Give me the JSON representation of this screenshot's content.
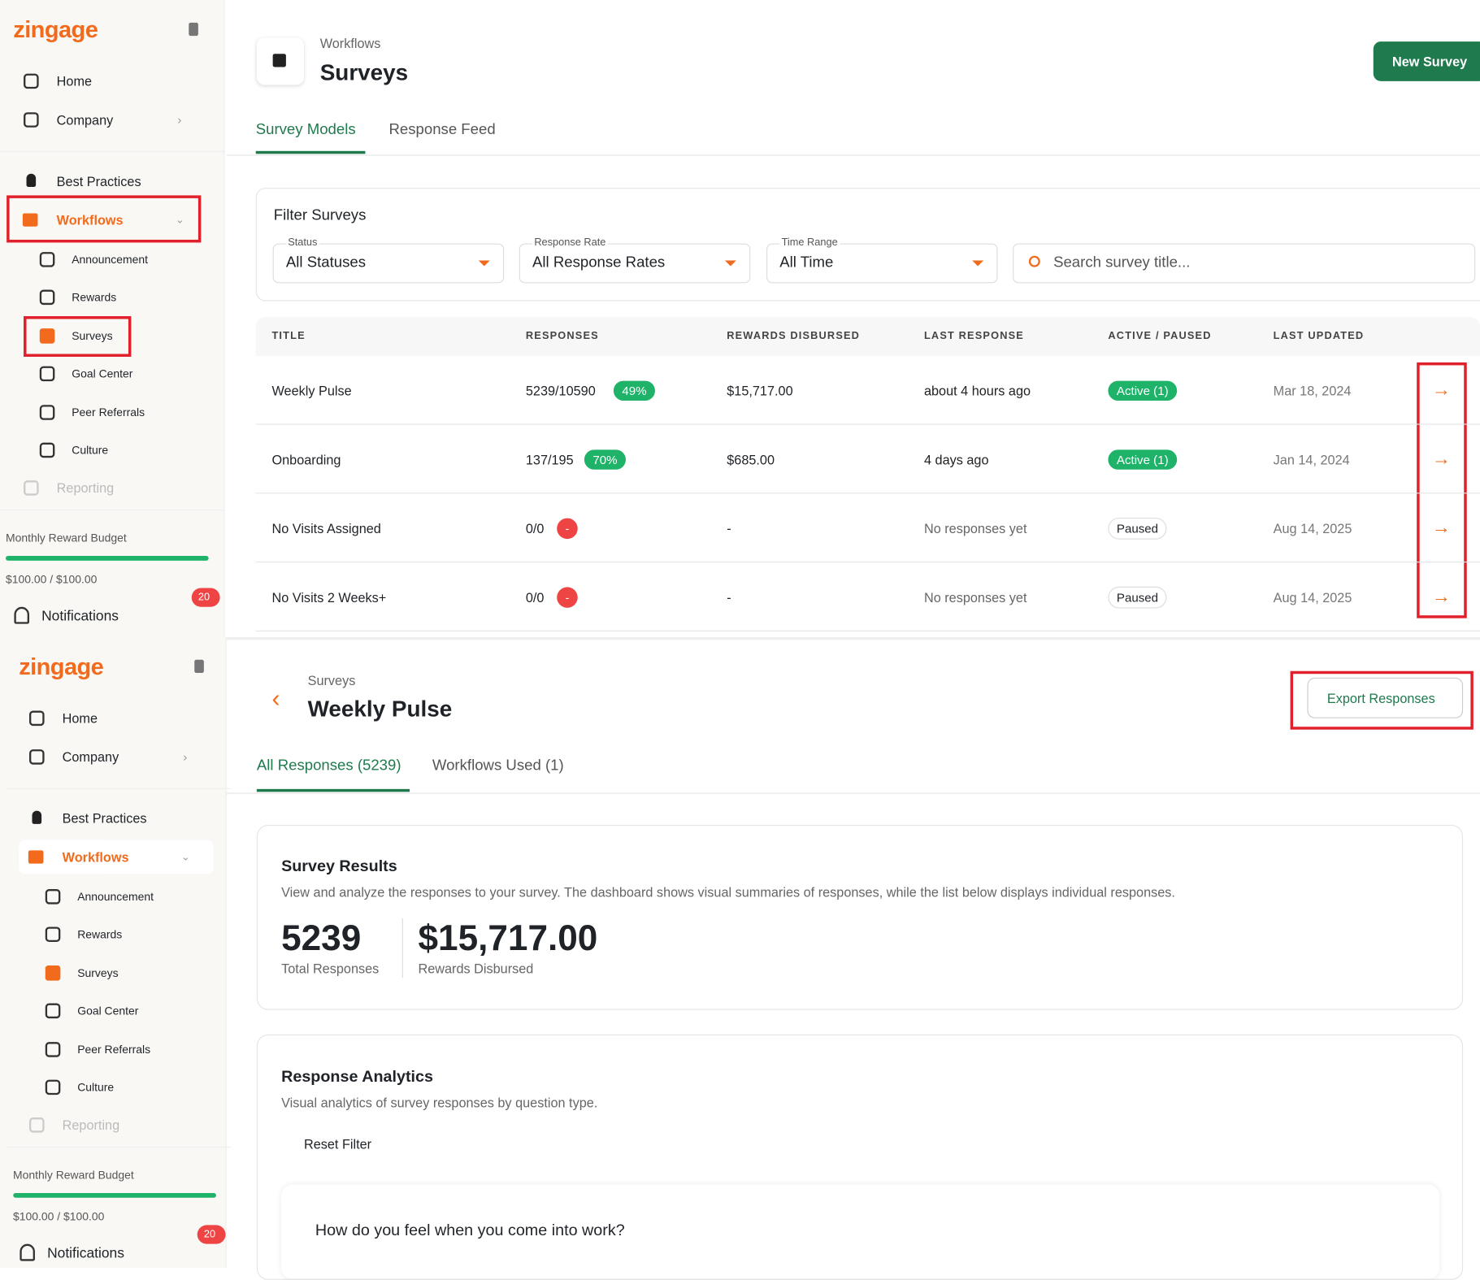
{
  "top": {
    "sidebar": {
      "logo": "zingage",
      "main": [
        "Home",
        "Company"
      ],
      "best": "Best Practices",
      "workflows": "Workflows",
      "sub": [
        "Announcement",
        "Rewards",
        "Surveys",
        "Goal Center",
        "Peer Referrals",
        "Culture"
      ],
      "reporting": "Reporting",
      "budget_label": "Monthly Reward Budget",
      "budget_value": "$100.00 / $100.00",
      "notification_count": 20,
      "notifications": "Notifications"
    },
    "header": {
      "breadcrumb": "Workflows",
      "title": "Surveys",
      "button": "New Survey"
    },
    "tabs": [
      "Survey Models",
      "Response Feed"
    ],
    "filter": {
      "title": "Filter Surveys",
      "fields": [
        {
          "label": "Status",
          "value": "All Statuses"
        },
        {
          "label": "Response Rate",
          "value": "All Response Rates"
        },
        {
          "label": "Time Range",
          "value": "All Time"
        }
      ],
      "search": "Search survey title..."
    },
    "table": {
      "columns": [
        "TITLE",
        "RESPONSES",
        "REWARDS DISBURSED",
        "LAST RESPONSE",
        "ACTIVE / PAUSED",
        "LAST UPDATED"
      ],
      "rows": [
        [
          "Weekly Pulse",
          "5239/10590",
          "49%",
          "$15,717.00",
          "about 4 hours ago",
          "Active (1)",
          "Mar 18, 2024"
        ],
        [
          "Onboarding",
          "137/195",
          "70%",
          "$685.00",
          "4 days ago",
          "Active (1)",
          "Jan 14, 2024"
        ],
        [
          "No Visits Assigned",
          "0/0",
          "-",
          "-",
          "No responses yet",
          "Paused",
          "Aug 14, 2025"
        ],
        [
          "No Visits 2 Weeks+",
          "0/0",
          "-",
          "-",
          "No responses yet",
          "Paused",
          "Aug 14, 2025"
        ]
      ]
    }
  },
  "bottom": {
    "sidebar": {
      "logo": "zingage",
      "main": [
        "Home",
        "Company"
      ],
      "best": "Best Practices",
      "workflows": "Workflows",
      "sub": [
        "Announcement",
        "Rewards",
        "Surveys",
        "Goal Center",
        "Peer Referrals",
        "Culture"
      ],
      "reporting": "Reporting",
      "budget_label": "Monthly Reward Budget",
      "budget_value": "$100.00 / $100.00",
      "notification_count": 20,
      "notifications": "Notifications"
    },
    "header": {
      "breadcrumb": "Surveys",
      "title": "Weekly Pulse",
      "button": "Export Responses"
    },
    "tabs": [
      "All Responses (5239)",
      "Workflows Used (1)"
    ],
    "results": {
      "title": "Survey Results",
      "description": "View and analyze the responses to your survey. The dashboard shows visual summaries of responses, while the list below displays individual responses.",
      "stats": [
        {
          "value": "5239",
          "label": "Total Responses"
        },
        {
          "value": "$15,717.00",
          "label": "Rewards Disbursed"
        }
      ]
    },
    "analytics": {
      "title": "Response Analytics",
      "description": "Visual analytics of survey responses by question type.",
      "reset": "Reset Filter",
      "question": "How do you feel when you come into work?"
    }
  }
}
